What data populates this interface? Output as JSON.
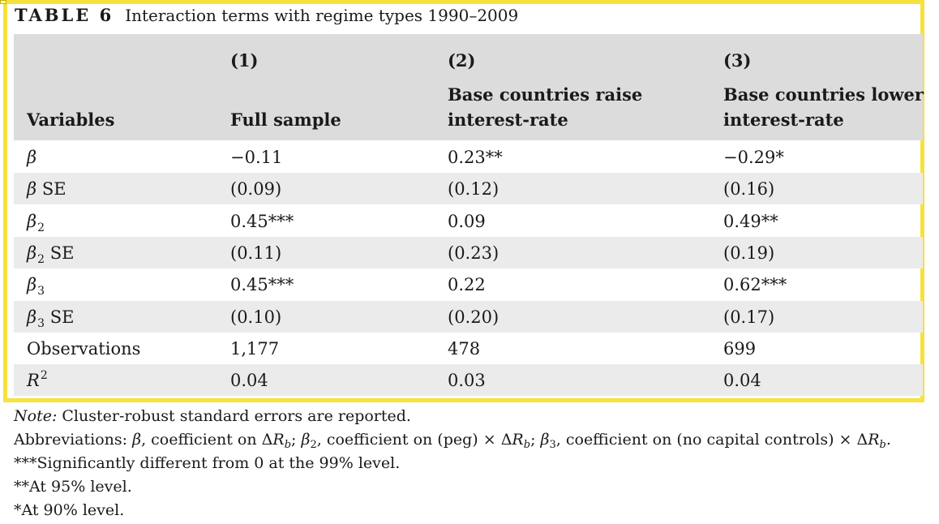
{
  "title": {
    "label": "TABLE 6",
    "caption": "Interaction terms with regime types 1990–2009"
  },
  "header": {
    "variables_label": "Variables",
    "columns": [
      {
        "number": "(1)",
        "name_line1": "Full sample",
        "name_line2": ""
      },
      {
        "number": "(2)",
        "name_line1": "Base countries raise",
        "name_line2": "interest-rate"
      },
      {
        "number": "(3)",
        "name_line1": "Base countries lower",
        "name_line2": "interest-rate"
      }
    ]
  },
  "rows": [
    {
      "var": "β",
      "sym": "β",
      "sub": "",
      "sup": "",
      "suffix": "",
      "values": [
        "−0.11",
        "0.23**",
        "−0.29*"
      ]
    },
    {
      "var": "β SE",
      "sym": "β",
      "sub": "",
      "sup": "",
      "suffix": " SE",
      "values": [
        "(0.09)",
        "(0.12)",
        "(0.16)"
      ]
    },
    {
      "var": "β2",
      "sym": "β",
      "sub": "2",
      "sup": "",
      "suffix": "",
      "values": [
        "0.45***",
        "0.09",
        "0.49**"
      ]
    },
    {
      "var": "β2 SE",
      "sym": "β",
      "sub": "2",
      "sup": "",
      "suffix": " SE",
      "values": [
        "(0.11)",
        "(0.23)",
        "(0.19)"
      ]
    },
    {
      "var": "β3",
      "sym": "β",
      "sub": "3",
      "sup": "",
      "suffix": "",
      "values": [
        "0.45***",
        "0.22",
        "0.62***"
      ]
    },
    {
      "var": "β3 SE",
      "sym": "β",
      "sub": "3",
      "sup": "",
      "suffix": " SE",
      "values": [
        "(0.10)",
        "(0.20)",
        "(0.17)"
      ]
    },
    {
      "var": "Observations",
      "sym": "",
      "sub": "",
      "sup": "",
      "suffix": "Observations",
      "values": [
        "1,177",
        "478",
        "699"
      ]
    },
    {
      "var": "R2",
      "sym": "R",
      "sub": "",
      "sup": "2",
      "suffix": "",
      "values": [
        "0.04",
        "0.03",
        "0.04"
      ]
    }
  ],
  "notes": {
    "note_label": "Note:",
    "note_text": " Cluster-robust standard errors are reported.",
    "abbreviations": [
      {
        "t": "Abbreviations: "
      },
      {
        "t": "β",
        "i": true
      },
      {
        "t": ", coefficient on Δ"
      },
      {
        "t": "R",
        "i": true
      },
      {
        "t": "b",
        "i": true,
        "sub": true
      },
      {
        "t": "; "
      },
      {
        "t": "β",
        "i": true
      },
      {
        "t": "2",
        "sub": true
      },
      {
        "t": ", coefficient on (peg) × Δ"
      },
      {
        "t": "R",
        "i": true
      },
      {
        "t": "b",
        "i": true,
        "sub": true
      },
      {
        "t": "; "
      },
      {
        "t": "β",
        "i": true
      },
      {
        "t": "3",
        "sub": true
      },
      {
        "t": ", coefficient on (no capital controls) × Δ"
      },
      {
        "t": "R",
        "i": true
      },
      {
        "t": "b",
        "i": true,
        "sub": true
      },
      {
        "t": "."
      }
    ],
    "sig_99": "***Significantly different from 0 at the 99% level.",
    "sig_95": "**At 95% level.",
    "sig_90": "*At 90% level."
  }
}
